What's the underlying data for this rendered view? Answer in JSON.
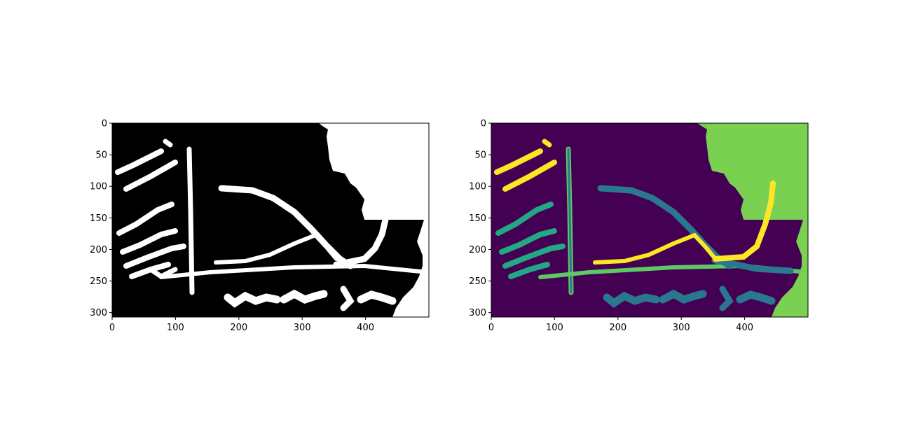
{
  "chart_data": [
    {
      "type": "image",
      "title": "",
      "xlabel": "",
      "ylabel": "",
      "colormap": "gray",
      "xlim": [
        0,
        500
      ],
      "ylim": [
        307,
        0
      ],
      "x_ticks": [
        0,
        100,
        200,
        300,
        400
      ],
      "y_ticks": [
        0,
        50,
        100,
        150,
        200,
        250,
        300
      ],
      "x_tick_labels": [
        "0",
        "100",
        "200",
        "300",
        "400"
      ],
      "y_tick_labels": [
        "0",
        "50",
        "100",
        "150",
        "200",
        "250",
        "300"
      ],
      "colors": {
        "background": "#000000",
        "foreground": "#ffffff"
      }
    },
    {
      "type": "image",
      "title": "",
      "xlabel": "",
      "ylabel": "",
      "colormap": "viridis",
      "xlim": [
        0,
        500
      ],
      "ylim": [
        307,
        0
      ],
      "x_ticks": [
        0,
        100,
        200,
        300,
        400
      ],
      "y_ticks": [
        0,
        50,
        100,
        150,
        200,
        250,
        300
      ],
      "x_tick_labels": [
        "0",
        "100",
        "200",
        "300",
        "400"
      ],
      "y_tick_labels": [
        "0",
        "50",
        "100",
        "150",
        "200",
        "250",
        "300"
      ],
      "colors": {
        "background": "#440154",
        "region_top_right": "#7ad151",
        "outline": "#5ec962",
        "text_strokes": "#2a788e",
        "left_strokes": "#22a884",
        "highlight_strokes": "#fde725"
      }
    }
  ]
}
